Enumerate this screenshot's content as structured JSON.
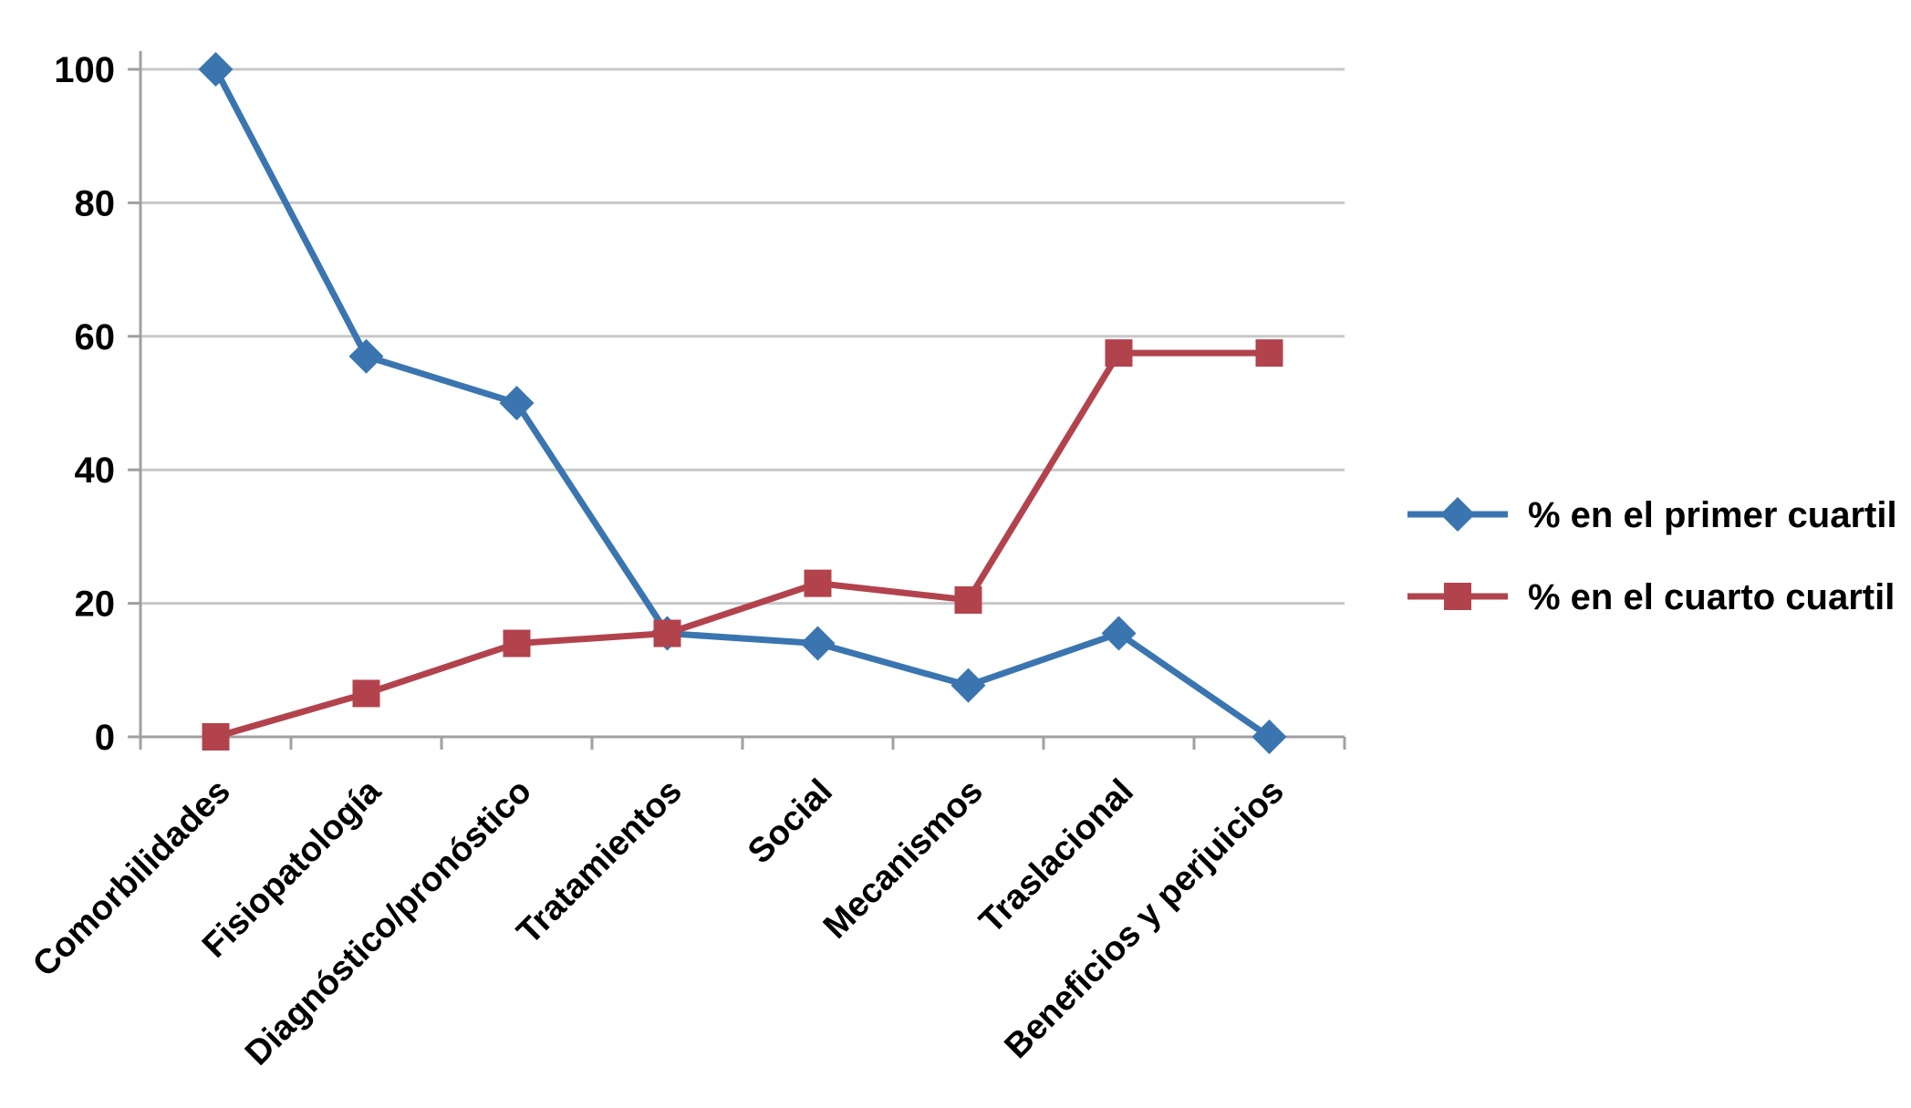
{
  "chart_data": {
    "type": "line",
    "title": "",
    "xlabel": "",
    "ylabel": "",
    "categories": [
      "Comorbilidades",
      "Fisiopatología",
      "Diagnóstico/pronóstico",
      "Tratamientos",
      "Social",
      "Mecanismos",
      "Traslacional",
      "Beneficios y perjuicios"
    ],
    "series": [
      {
        "name": "% en el primer cuartil",
        "color": "#3A75B0",
        "marker": "diamond",
        "values": [
          100,
          57,
          50,
          15.5,
          14,
          7.7,
          15.5,
          0
        ]
      },
      {
        "name": "% en el cuarto cuartil",
        "color": "#B2434D",
        "marker": "square",
        "values": [
          0,
          6.5,
          14,
          15.5,
          23,
          20.5,
          57.5,
          57.5
        ]
      }
    ],
    "yticks": [
      0,
      20,
      40,
      60,
      80,
      100
    ],
    "ylim": [
      0,
      100
    ],
    "grid": true,
    "gridline_color": "#C8C8C8",
    "axis_color": "#A0A0A0",
    "legend_position": "right",
    "x_label_rotation_deg": -45
  }
}
